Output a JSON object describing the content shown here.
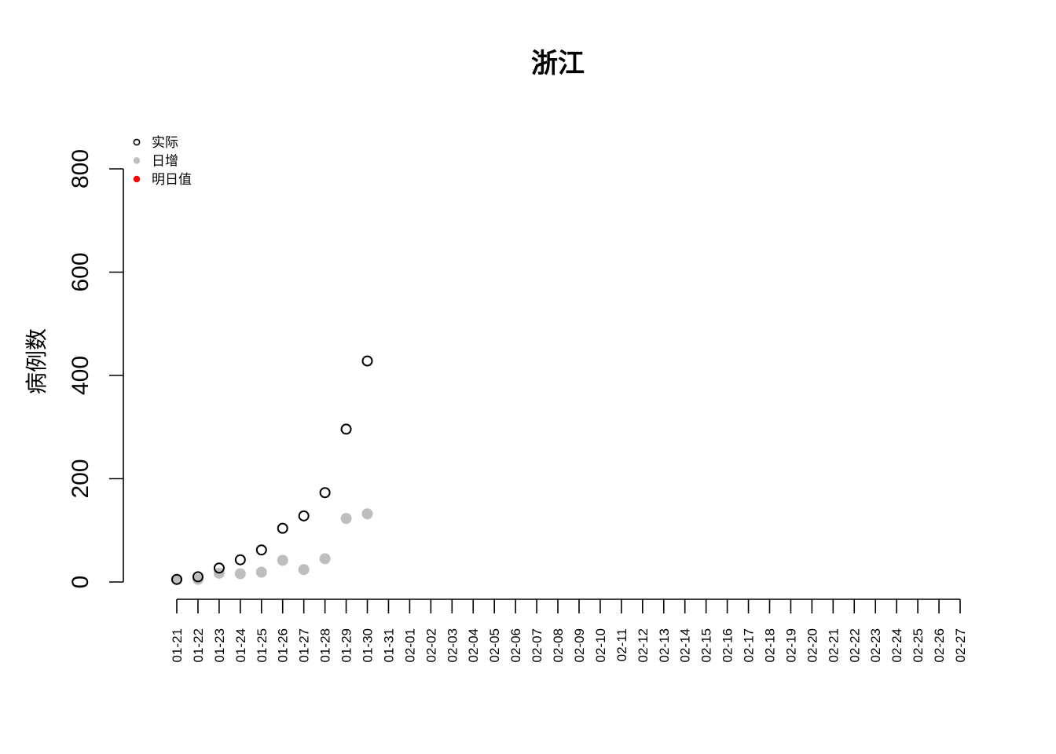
{
  "chart_data": {
    "type": "scatter",
    "title": "浙江",
    "xlabel": "",
    "ylabel": "病例数",
    "ylim": [
      0,
      800
    ],
    "yticks": [
      0,
      200,
      400,
      600,
      800
    ],
    "x": [
      "01-21",
      "01-22",
      "01-23",
      "01-24",
      "01-25",
      "01-26",
      "01-27",
      "01-28",
      "01-29",
      "01-30",
      "01-31",
      "02-01",
      "02-02",
      "02-03",
      "02-04",
      "02-05",
      "02-06",
      "02-07",
      "02-08",
      "02-09",
      "02-10",
      "02-11",
      "02-12",
      "02-13",
      "02-14",
      "02-15",
      "02-16",
      "02-17",
      "02-18",
      "02-19",
      "02-20",
      "02-21",
      "02-22",
      "02-23",
      "02-24",
      "02-25",
      "02-26",
      "02-27"
    ],
    "grid": false,
    "legend_position": "top-left",
    "series": [
      {
        "name": "实际",
        "marker": "open-circle",
        "color": "#000000",
        "values": [
          5,
          10,
          27,
          43,
          62,
          104,
          128,
          173,
          296,
          428
        ]
      },
      {
        "name": "日增",
        "marker": "filled-circle",
        "color": "#bebebe",
        "values": [
          5,
          5,
          17,
          16,
          19,
          42,
          24,
          45,
          123,
          132
        ]
      },
      {
        "name": "明日值",
        "marker": "filled-circle",
        "color": "#ff0000",
        "values": []
      }
    ]
  }
}
